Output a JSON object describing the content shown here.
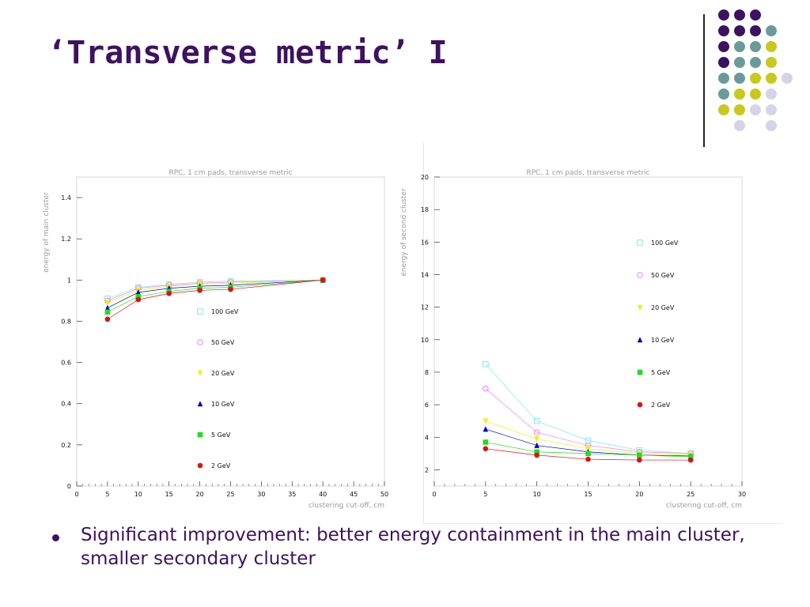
{
  "slide": {
    "title": "‘Transverse metric’ I",
    "bullet": "Significant improvement: better energy containment in the main cluster, smaller secondary cluster"
  },
  "colors": {
    "title": "#3d1260",
    "deco_dots": [
      "#3d1260",
      "#6b9a9a",
      "#c8c81e",
      "#d4d4e6"
    ]
  },
  "chart_data": [
    {
      "type": "scatter",
      "title": "RPC, 1 cm pads, transverse metric",
      "xlabel": "clustering cut-off, cm",
      "ylabel": "energy of main cluster",
      "xlim": [
        0,
        50
      ],
      "ylim": [
        0,
        1.5
      ],
      "xticks": [
        0,
        5,
        10,
        15,
        20,
        25,
        30,
        35,
        40,
        45,
        50
      ],
      "yticks": [
        0,
        0.2,
        0.4,
        0.6,
        0.8,
        1,
        1.2,
        1.4
      ],
      "legend_position": "right-center",
      "x": [
        5,
        10,
        15,
        20,
        25,
        40
      ],
      "series": [
        {
          "name": "100 GeV",
          "marker": "open-square",
          "color": "#7fe8ee",
          "values": [
            0.91,
            0.965,
            0.98,
            0.99,
            0.995,
            1.0
          ]
        },
        {
          "name": "50 GeV",
          "marker": "open-circle",
          "color": "#ee7ff0",
          "values": [
            0.9,
            0.96,
            0.975,
            0.985,
            0.99,
            1.0
          ]
        },
        {
          "name": "20 GeV",
          "marker": "triangle-down",
          "color": "#f0f000",
          "values": [
            0.89,
            0.95,
            0.97,
            0.98,
            0.985,
            1.0
          ]
        },
        {
          "name": "10 GeV",
          "marker": "triangle-up",
          "color": "#0000cc",
          "values": [
            0.865,
            0.94,
            0.96,
            0.97,
            0.975,
            1.0
          ]
        },
        {
          "name": "5 GeV",
          "marker": "square",
          "color": "#22dd22",
          "values": [
            0.845,
            0.92,
            0.945,
            0.96,
            0.965,
            1.0
          ]
        },
        {
          "name": "2 GeV",
          "marker": "circle",
          "color": "#dd1111",
          "values": [
            0.81,
            0.905,
            0.935,
            0.95,
            0.955,
            1.0
          ]
        }
      ]
    },
    {
      "type": "scatter",
      "title": "RPC, 1 cm pads, transverse metric",
      "xlabel": "clustering cut-off, cm",
      "ylabel": "energy of second cluster",
      "xlim": [
        0,
        30
      ],
      "ylim": [
        1,
        20
      ],
      "xticks": [
        0,
        5,
        10,
        15,
        20,
        25,
        30
      ],
      "yticks": [
        2,
        4,
        6,
        8,
        10,
        12,
        14,
        16,
        18,
        20
      ],
      "legend_position": "right-center",
      "x": [
        5,
        10,
        15,
        20,
        25
      ],
      "series": [
        {
          "name": "100 GeV",
          "marker": "open-square",
          "color": "#7fe8ee",
          "values": [
            8.5,
            5.0,
            3.8,
            3.2,
            3.0
          ]
        },
        {
          "name": "50 GeV",
          "marker": "open-circle",
          "color": "#ee7ff0",
          "values": [
            7.0,
            4.3,
            3.5,
            3.1,
            3.0
          ]
        },
        {
          "name": "20 GeV",
          "marker": "triangle-down",
          "color": "#f0f000",
          "values": [
            5.0,
            3.9,
            3.3,
            3.0,
            2.9
          ]
        },
        {
          "name": "10 GeV",
          "marker": "triangle-up",
          "color": "#0000cc",
          "values": [
            4.5,
            3.5,
            3.1,
            2.9,
            2.85
          ]
        },
        {
          "name": "5 GeV",
          "marker": "square",
          "color": "#22dd22",
          "values": [
            3.7,
            3.1,
            3.0,
            2.9,
            2.8
          ]
        },
        {
          "name": "2 GeV",
          "marker": "circle",
          "color": "#dd1111",
          "values": [
            3.3,
            2.9,
            2.65,
            2.6,
            2.6
          ]
        }
      ]
    }
  ]
}
